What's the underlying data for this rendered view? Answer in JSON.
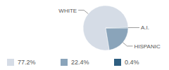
{
  "chart_data": {
    "type": "pie",
    "categories": [
      "WHITE",
      "HISPANIC",
      "A.I."
    ],
    "values": [
      77.2,
      22.4,
      0.4
    ],
    "value_labels": [
      "77.2%",
      "22.4%",
      "0.4%"
    ],
    "colors": [
      "#d5dce6",
      "#8aa4ba",
      "#2e5e80"
    ]
  }
}
